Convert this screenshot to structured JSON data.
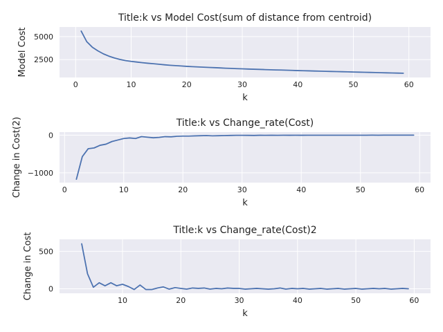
{
  "chart_data": [
    {
      "type": "line",
      "title": "Title:k vs Model Cost(sum of distance from centroid)",
      "xlabel": "k",
      "ylabel": "Model Cost",
      "xlim": [
        -2.9,
        63.9
      ],
      "ylim": [
        550,
        6050
      ],
      "xticks": [
        0,
        10,
        20,
        30,
        40,
        50,
        60
      ],
      "yticks": [
        2500,
        5000
      ],
      "grid": true,
      "series": [
        {
          "color": "#4c72b0",
          "x": [
            1,
            2,
            3,
            4,
            5,
            6,
            7,
            8,
            9,
            10,
            11,
            12,
            13,
            14,
            15,
            16,
            17,
            18,
            19,
            20,
            21,
            22,
            23,
            24,
            25,
            26,
            27,
            28,
            29,
            30,
            31,
            32,
            33,
            34,
            35,
            36,
            37,
            38,
            39,
            40,
            41,
            42,
            43,
            44,
            45,
            46,
            47,
            48,
            49,
            50,
            51,
            52,
            53,
            54,
            55,
            56,
            57,
            58,
            59
          ],
          "y": [
            5600,
            4450,
            3850,
            3450,
            3120,
            2870,
            2670,
            2510,
            2390,
            2300,
            2230,
            2160,
            2100,
            2050,
            1990,
            1930,
            1880,
            1840,
            1800,
            1760,
            1730,
            1700,
            1670,
            1640,
            1620,
            1590,
            1560,
            1540,
            1510,
            1490,
            1470,
            1450,
            1430,
            1410,
            1390,
            1370,
            1360,
            1340,
            1320,
            1300,
            1285,
            1270,
            1250,
            1235,
            1220,
            1205,
            1190,
            1175,
            1160,
            1145,
            1130,
            1115,
            1100,
            1085,
            1070,
            1055,
            1040,
            1025,
            1010
          ]
        }
      ]
    },
    {
      "type": "line",
      "title": "Title:k vs Change_rate(Cost)",
      "xlabel": "k",
      "ylabel": "Change in Cost(2)",
      "xlim": [
        -0.85,
        61.85
      ],
      "ylim": [
        -1260,
        80
      ],
      "xticks": [
        0,
        10,
        20,
        30,
        40,
        50,
        60
      ],
      "yticks": [
        -1000,
        0
      ],
      "ytick_labels": [
        "−1000",
        "0"
      ],
      "grid": true,
      "series": [
        {
          "color": "#4c72b0",
          "x": [
            2,
            3,
            4,
            5,
            6,
            7,
            8,
            9,
            10,
            11,
            12,
            13,
            14,
            15,
            16,
            17,
            18,
            19,
            20,
            21,
            22,
            23,
            24,
            25,
            26,
            27,
            28,
            29,
            30,
            31,
            32,
            33,
            34,
            35,
            36,
            37,
            38,
            39,
            40,
            41,
            42,
            43,
            44,
            45,
            46,
            47,
            48,
            49,
            50,
            51,
            52,
            53,
            54,
            55,
            56,
            57,
            58,
            59
          ],
          "y": [
            -1170,
            -570,
            -360,
            -340,
            -270,
            -240,
            -170,
            -130,
            -90,
            -75,
            -90,
            -40,
            -55,
            -70,
            -60,
            -40,
            -45,
            -30,
            -25,
            -25,
            -20,
            -15,
            -12,
            -18,
            -15,
            -12,
            -8,
            -5,
            -5,
            -6,
            -8,
            -4,
            -5,
            -4,
            -5,
            -3,
            -4,
            -3,
            -4,
            -3,
            -3,
            -2,
            -2,
            -3,
            -2,
            -2,
            -2,
            -2,
            -2,
            -2,
            -1,
            -2,
            -1,
            -1,
            -1,
            -1,
            -1,
            -1
          ]
        }
      ]
    },
    {
      "type": "line",
      "title": "Title:k vs Change_rate(Cost)2",
      "xlabel": "k",
      "ylabel": "Change in Cost",
      "xlim": [
        -0.8,
        62.8
      ],
      "ylim": [
        -60,
        660
      ],
      "xticks": [
        10,
        20,
        30,
        40,
        50,
        60
      ],
      "yticks": [
        0,
        500
      ],
      "grid": true,
      "series": [
        {
          "color": "#4c72b0",
          "x": [
            3,
            4,
            5,
            6,
            7,
            8,
            9,
            10,
            11,
            12,
            13,
            14,
            15,
            16,
            17,
            18,
            19,
            20,
            21,
            22,
            23,
            24,
            25,
            26,
            27,
            28,
            29,
            30,
            31,
            32,
            33,
            34,
            35,
            36,
            37,
            38,
            39,
            40,
            41,
            42,
            43,
            44,
            45,
            46,
            47,
            48,
            49,
            50,
            51,
            52,
            53,
            54,
            55,
            56,
            57,
            58,
            59
          ],
          "y": [
            600,
            200,
            20,
            80,
            40,
            80,
            40,
            60,
            30,
            -10,
            50,
            -10,
            -10,
            10,
            25,
            -5,
            15,
            5,
            -5,
            10,
            5,
            10,
            -5,
            5,
            0,
            10,
            5,
            5,
            -5,
            0,
            5,
            0,
            -5,
            0,
            10,
            -5,
            5,
            0,
            5,
            -5,
            0,
            5,
            -5,
            0,
            5,
            -5,
            0,
            5,
            -5,
            0,
            5,
            0,
            5,
            -5,
            0,
            5,
            0
          ]
        }
      ]
    }
  ]
}
